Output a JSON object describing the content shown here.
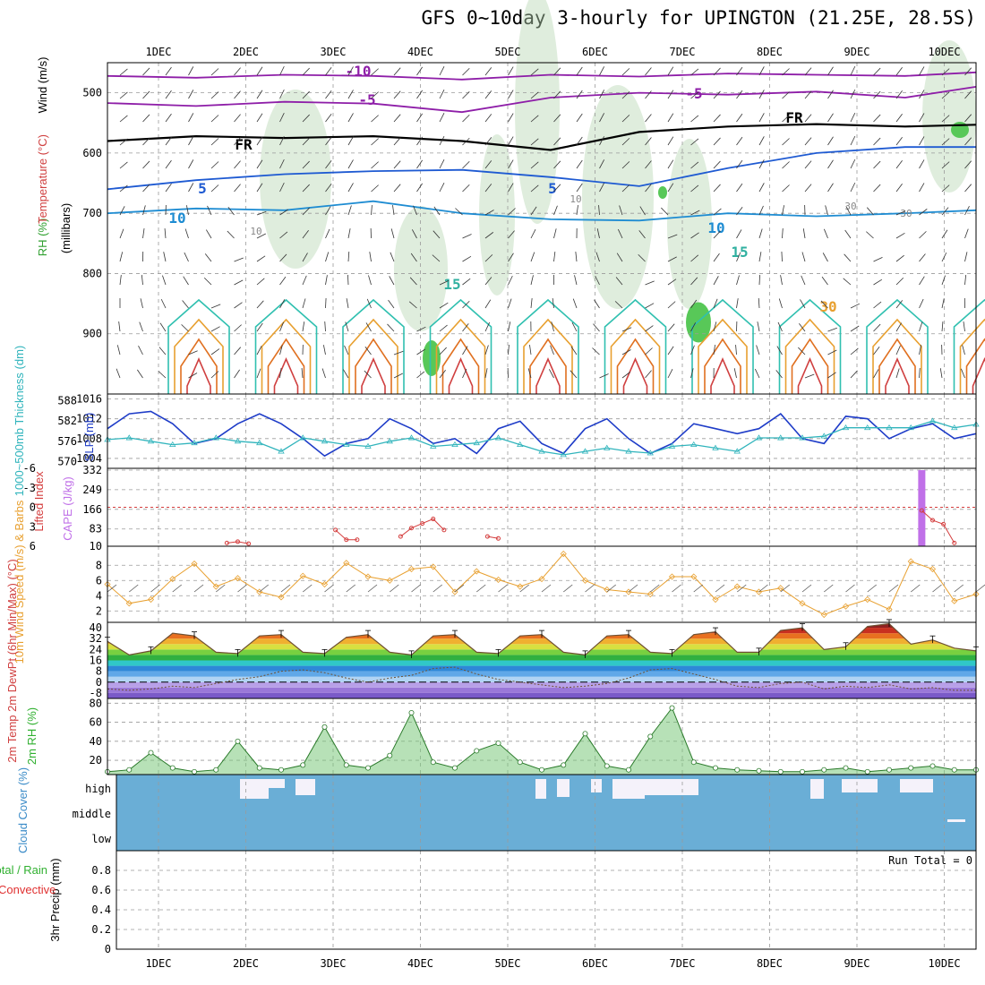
{
  "title": "GFS 0~10day 3-hourly for UPINGTON (21.25E, 28.5S)",
  "days": [
    "1DEC",
    "2DEC",
    "3DEC",
    "4DEC",
    "5DEC",
    "6DEC",
    "7DEC",
    "8DEC",
    "9DEC",
    "10DEC"
  ],
  "run_total_label": "Run Total = 0",
  "chart_data": [
    {
      "type": "contour",
      "panel": "upper-air",
      "ylabel_parts": [
        "RH (%)",
        "Temperature (°C)",
        "Wind (m/s)"
      ],
      "y_axis_label": "(millibars)",
      "y_ticks": [
        500,
        600,
        700,
        800,
        900
      ],
      "ylim": [
        1000,
        450
      ],
      "temperature_contour_labels": [
        "-10",
        "-5",
        "-5",
        "FR",
        "FR",
        "5",
        "5",
        "10",
        "10",
        "15",
        "15",
        "30"
      ],
      "rh_contour_labels": [
        "10",
        "10",
        "30",
        "30"
      ],
      "series": [
        {
          "name": "-10°C level (mb)",
          "color": "#8e1ea8",
          "x": [
            0,
            1,
            2,
            3,
            4,
            5,
            6,
            7,
            8,
            9,
            9.8
          ],
          "y": [
            472,
            475,
            470,
            472,
            478,
            470,
            473,
            468,
            470,
            472,
            466
          ]
        },
        {
          "name": "-5°C level (mb)",
          "color": "#8e1ea8",
          "x": [
            0,
            1,
            2,
            3,
            4,
            5,
            6,
            7,
            8,
            9,
            9.8
          ],
          "y": [
            517,
            522,
            515,
            518,
            532,
            508,
            500,
            503,
            498,
            508,
            490
          ]
        },
        {
          "name": "0°C (FR) level (mb)",
          "color": "#000000",
          "x": [
            0,
            1,
            2,
            3,
            4,
            5,
            6,
            7,
            8,
            9,
            9.8
          ],
          "y": [
            580,
            572,
            575,
            572,
            580,
            595,
            565,
            556,
            552,
            556,
            553
          ]
        },
        {
          "name": "5°C level (mb)",
          "color": "#1e5ad2",
          "x": [
            0,
            1,
            2,
            3,
            4,
            5,
            6,
            7,
            8,
            9,
            9.8
          ],
          "y": [
            660,
            645,
            635,
            630,
            628,
            640,
            655,
            625,
            600,
            590,
            590
          ]
        },
        {
          "name": "10°C level (mb)",
          "color": "#1e8cd2",
          "x": [
            0,
            1,
            2,
            3,
            4,
            5,
            6,
            7,
            8,
            9,
            9.8
          ],
          "y": [
            700,
            692,
            695,
            680,
            700,
            710,
            712,
            700,
            705,
            700,
            695
          ]
        }
      ]
    },
    {
      "type": "line",
      "panel": "thickness-slp",
      "ylabel_left": "1000~500mb Thickness (dm)",
      "ylabel_right": "SLP (mb)",
      "y_ticks_left": [
        570,
        576,
        582,
        588
      ],
      "y_ticks_right": [
        1004,
        1008,
        1012,
        1016
      ],
      "series": [
        {
          "name": "SLP",
          "color": "#1e3cc8",
          "x": [
            0.0,
            0.25,
            0.5,
            0.75,
            1.0,
            1.25,
            1.5,
            1.75,
            2.0,
            2.25,
            2.5,
            2.75,
            3.0,
            3.25,
            3.5,
            3.75,
            4.0,
            4.25,
            4.5,
            4.75,
            5.0,
            5.25,
            5.5,
            5.75,
            6.0,
            6.25,
            6.5,
            6.75,
            7.0,
            7.25,
            7.5,
            7.75,
            8.0,
            8.25,
            8.5,
            8.75,
            9.0,
            9.25,
            9.5,
            9.75,
            10.0
          ],
          "y": [
            1010,
            1013,
            1013.5,
            1011,
            1007,
            1008,
            1011,
            1013,
            1011,
            1008,
            1004.5,
            1007,
            1008,
            1012,
            1010,
            1007,
            1008,
            1005,
            1010,
            1011.5,
            1007,
            1005,
            1010,
            1012,
            1008,
            1005,
            1007,
            1011,
            1010,
            1009,
            1010,
            1013,
            1008,
            1007,
            1012.5,
            1012,
            1008,
            1010,
            1011,
            1008,
            1009
          ]
        },
        {
          "name": "1000~500mb Thickness",
          "color": "#30b4bc",
          "x": [
            0.0,
            0.25,
            0.5,
            0.75,
            1.0,
            1.25,
            1.5,
            1.75,
            2.0,
            2.25,
            2.5,
            2.75,
            3.0,
            3.25,
            3.5,
            3.75,
            4.0,
            4.25,
            4.5,
            4.75,
            5.0,
            5.25,
            5.5,
            5.75,
            6.0,
            6.25,
            6.5,
            6.75,
            7.0,
            7.25,
            7.5,
            7.75,
            8.0,
            8.25,
            8.5,
            8.75,
            9.0,
            9.25,
            9.5,
            9.75,
            10.0
          ],
          "y": [
            576.5,
            577,
            576,
            575,
            575.5,
            577,
            576,
            575.5,
            573,
            577,
            576,
            575,
            574.5,
            576,
            577,
            574.5,
            575,
            575.5,
            577,
            575,
            573,
            572,
            573,
            574,
            573,
            572.5,
            574.5,
            575,
            574,
            573,
            577,
            577,
            577,
            577.5,
            580,
            580,
            580,
            580,
            582,
            580,
            581
          ]
        }
      ]
    },
    {
      "type": "bar",
      "panel": "lifted-index-cape",
      "ylabel_left": "Lifted Index",
      "ylabel_right": "CAPE (J/kg)",
      "y_ticks_left": [
        -6,
        -3,
        0,
        3,
        6
      ],
      "y_ticks_right": [
        10,
        83,
        166,
        249,
        332
      ],
      "series": [
        {
          "name": "CAPE",
          "color": "#c070e8",
          "x": [
            9.375,
            9.5
          ],
          "values": [
            332,
            12
          ]
        },
        {
          "name": "Lifted Index",
          "color": "#d43c3c",
          "x": [
            1.375,
            1.5,
            1.625,
            2.625,
            2.75,
            2.875,
            3.375,
            3.5,
            3.625,
            3.75,
            3.875,
            4.375,
            4.5,
            9.375,
            9.5,
            9.625,
            9.75
          ],
          "y": [
            5.5,
            5.3,
            5.6,
            3.5,
            5.0,
            5.0,
            4.5,
            3.2,
            2.5,
            1.8,
            3.5,
            4.5,
            4.8,
            0.5,
            2.0,
            2.6,
            5.5
          ]
        }
      ]
    },
    {
      "type": "line",
      "panel": "10m-wind",
      "ylabel": "10m Wind Speed (m/s) & Barbs",
      "y_ticks": [
        2,
        4,
        6,
        8
      ],
      "series": [
        {
          "name": "10m Wind Speed",
          "color": "#e8a030",
          "x": [
            0.0,
            0.25,
            0.5,
            0.75,
            1.0,
            1.25,
            1.5,
            1.75,
            2.0,
            2.25,
            2.5,
            2.75,
            3.0,
            3.25,
            3.5,
            3.75,
            4.0,
            4.25,
            4.5,
            4.75,
            5.0,
            5.25,
            5.5,
            5.75,
            6.0,
            6.25,
            6.5,
            6.75,
            7.0,
            7.25,
            7.5,
            7.75,
            8.0,
            8.25,
            8.5,
            8.75,
            9.0,
            9.25,
            9.5,
            9.75,
            10.0
          ],
          "y": [
            5.5,
            3.0,
            3.5,
            6.2,
            8.2,
            5.2,
            6.3,
            4.5,
            3.8,
            6.6,
            5.5,
            8.3,
            6.5,
            6.0,
            7.5,
            7.8,
            4.5,
            7.2,
            6.1,
            5.2,
            6.2,
            9.5,
            6.0,
            4.8,
            4.5,
            4.2,
            6.5,
            6.5,
            3.5,
            5.2,
            4.5,
            5.0,
            3.0,
            1.5,
            2.6,
            3.5,
            2.2,
            8.5,
            7.5,
            3.3,
            4.2
          ]
        }
      ]
    },
    {
      "type": "area",
      "panel": "2m-temp",
      "ylabel": "2m Temp 2m DewPt (6hr Min/Max) (°C)",
      "y_ticks": [
        -8,
        0,
        8,
        16,
        24,
        32,
        40
      ],
      "series": [
        {
          "name": "2m Temp",
          "color": "#6e5032",
          "x": [
            0.0,
            0.25,
            0.5,
            0.75,
            1.0,
            1.25,
            1.5,
            1.75,
            2.0,
            2.25,
            2.5,
            2.75,
            3.0,
            3.25,
            3.5,
            3.75,
            4.0,
            4.25,
            4.5,
            4.75,
            5.0,
            5.25,
            5.5,
            5.75,
            6.0,
            6.25,
            6.5,
            6.75,
            7.0,
            7.25,
            7.5,
            7.75,
            8.0,
            8.25,
            8.5,
            8.75,
            9.0,
            9.25,
            9.5,
            9.75,
            10.0
          ],
          "y": [
            30,
            20,
            23,
            36,
            34,
            22,
            21,
            34,
            35,
            22,
            21,
            33,
            35,
            22,
            20,
            34,
            35,
            22,
            21,
            34,
            35,
            22,
            20,
            34,
            35,
            22,
            21,
            35,
            37,
            22,
            22,
            38,
            40,
            24,
            26,
            41,
            43,
            28,
            31,
            25,
            23
          ]
        },
        {
          "name": "2m DewPt",
          "color": "#6e5032",
          "x": [
            0.0,
            0.25,
            0.5,
            0.75,
            1.0,
            1.25,
            1.5,
            1.75,
            2.0,
            2.25,
            2.5,
            2.75,
            3.0,
            3.25,
            3.5,
            3.75,
            4.0,
            4.25,
            4.5,
            4.75,
            5.0,
            5.25,
            5.5,
            5.75,
            6.0,
            6.25,
            6.5,
            6.75,
            7.0,
            7.25,
            7.5,
            7.75,
            8.0,
            8.25,
            8.5,
            8.75,
            9.0,
            9.25,
            9.5,
            9.75,
            10.0
          ],
          "y": [
            -5,
            -6,
            -5,
            -3,
            -4,
            -1,
            2,
            4,
            8,
            9,
            7,
            3,
            0,
            3,
            5,
            10,
            11,
            6,
            2,
            0,
            -2,
            -4,
            -3,
            -1,
            3,
            9,
            10,
            6,
            2,
            -3,
            -4,
            -1,
            0,
            -5,
            -3,
            -4,
            -2,
            -5,
            -4,
            -6,
            -6
          ]
        }
      ]
    },
    {
      "type": "area",
      "panel": "2m-rh",
      "ylabel": "2m RH (%)",
      "y_ticks": [
        20,
        40,
        60,
        80
      ],
      "series": [
        {
          "name": "2m RH",
          "color": "#30b030",
          "x": [
            0.0,
            0.25,
            0.5,
            0.75,
            1.0,
            1.25,
            1.5,
            1.75,
            2.0,
            2.25,
            2.5,
            2.75,
            3.0,
            3.25,
            3.5,
            3.75,
            4.0,
            4.25,
            4.5,
            4.75,
            5.0,
            5.25,
            5.5,
            5.75,
            6.0,
            6.25,
            6.5,
            6.75,
            7.0,
            7.25,
            7.5,
            7.75,
            8.0,
            8.25,
            8.5,
            8.75,
            9.0,
            9.25,
            9.5,
            9.75,
            10.0
          ],
          "y": [
            8,
            10,
            28,
            12,
            8,
            10,
            40,
            12,
            10,
            15,
            55,
            15,
            12,
            25,
            70,
            18,
            12,
            30,
            38,
            18,
            10,
            15,
            48,
            14,
            10,
            45,
            75,
            18,
            12,
            10,
            9,
            8,
            8,
            10,
            12,
            8,
            10,
            12,
            14,
            10,
            10
          ]
        }
      ]
    },
    {
      "type": "heatmap",
      "panel": "cloud-cover",
      "ylabel": "Cloud Cover (%)",
      "y_ticks": [
        "high",
        "middle",
        "low"
      ]
    },
    {
      "type": "bar",
      "panel": "precip",
      "ylabel_parts": [
        "Total / Rain",
        "Convective"
      ],
      "ylabel": "3hr Precip (mm)",
      "y_ticks": [
        0,
        0.2,
        0.4,
        0.6,
        0.8
      ],
      "ylim": [
        0,
        1
      ],
      "values": []
    }
  ],
  "colors": {
    "grid": "#9a9a9a",
    "frame": "#000000",
    "cloud": "#6aaed6",
    "cloud_gap": "#f5f2fa",
    "rh_shade": "#b9d8b4"
  }
}
